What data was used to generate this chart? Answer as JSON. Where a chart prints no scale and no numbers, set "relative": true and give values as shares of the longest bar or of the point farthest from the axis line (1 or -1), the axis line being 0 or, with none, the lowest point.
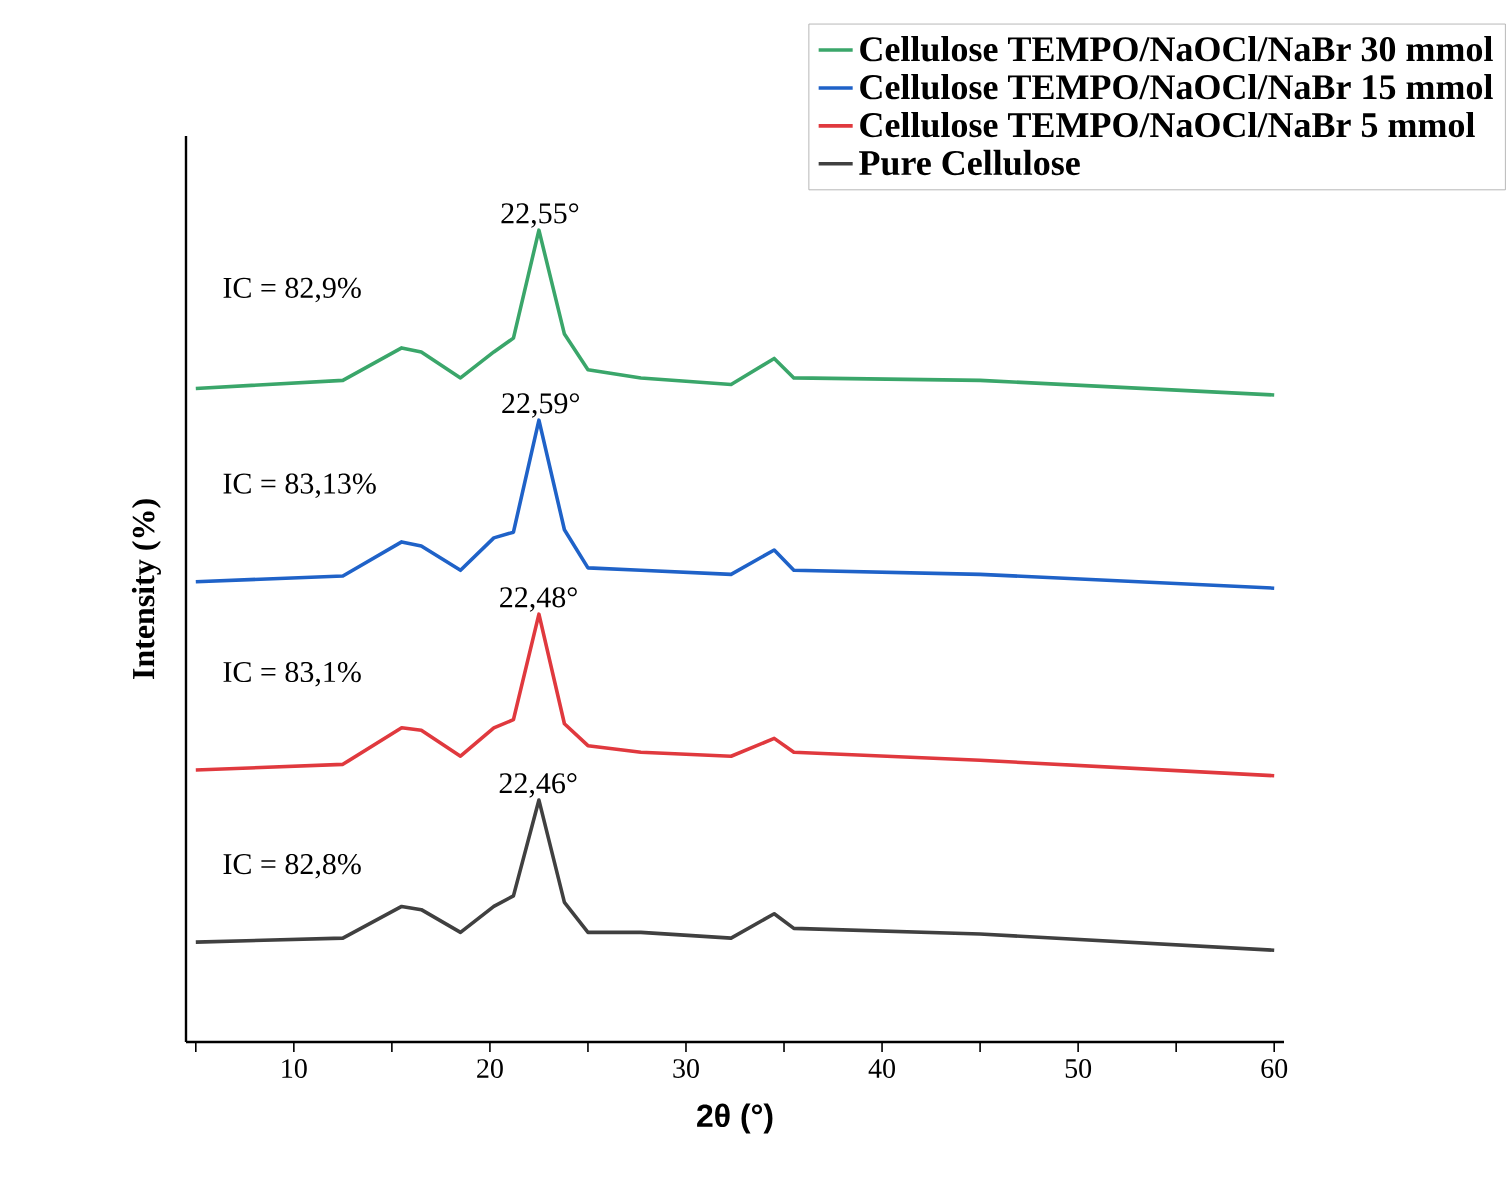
{
  "chart_data": {
    "type": "line",
    "relative": true,
    "xlabel": "2θ (°)",
    "ylabel": "Intensity (%)",
    "xlim": [
      4.5,
      60.5
    ],
    "xticks": [
      {
        "value": 5,
        "label": null
      },
      10,
      {
        "value": 15,
        "label": null
      },
      20,
      {
        "value": 25,
        "label": null
      },
      30,
      {
        "value": 35,
        "label": null
      },
      40,
      {
        "value": 45,
        "label": null
      },
      50,
      {
        "value": 55,
        "label": null
      },
      60
    ],
    "tick_labels": "x",
    "legend": "top right",
    "line_style": "solid",
    "x": [
      5,
      12.5,
      15.5,
      16.5,
      18.5,
      20.2,
      21.2,
      22.5,
      23.8,
      25,
      27.7,
      32.3,
      34.5,
      35.5,
      45,
      60
    ],
    "series": [
      {
        "name": "Cellulose TEMPO/NaOCl/NaBr 30 mmol",
        "color": "#3aa66a",
        "values": [
          0.805,
          0.815,
          0.855,
          0.85,
          0.818,
          0.85,
          0.867,
          1.0,
          0.872,
          0.828,
          0.818,
          0.81,
          0.842,
          0.818,
          0.815,
          0.797
        ]
      },
      {
        "name": "Cellulose TEMPO/NaOCl/NaBr 15 mmol",
        "color": "#1f62c8",
        "values": [
          0.567,
          0.574,
          0.616,
          0.611,
          0.581,
          0.621,
          0.628,
          0.766,
          0.631,
          0.584,
          0.581,
          0.576,
          0.606,
          0.581,
          0.576,
          0.559
        ]
      },
      {
        "name": "Cellulose TEMPO/NaOCl/NaBr 5 mmol",
        "color": "#e0393e",
        "values": [
          0.335,
          0.342,
          0.387,
          0.384,
          0.352,
          0.387,
          0.397,
          0.527,
          0.392,
          0.365,
          0.357,
          0.352,
          0.374,
          0.357,
          0.347,
          0.328
        ]
      },
      {
        "name": "Pure Cellulose",
        "color": "#404040",
        "values": [
          0.123,
          0.128,
          0.167,
          0.163,
          0.135,
          0.167,
          0.18,
          0.298,
          0.172,
          0.135,
          0.135,
          0.128,
          0.158,
          0.14,
          0.133,
          0.113
        ]
      }
    ],
    "annotations": [
      {
        "text": "22,55°",
        "x": 22.55,
        "y": 1.0
      },
      {
        "text": "22,59°",
        "x": 22.59,
        "y": 0.766
      },
      {
        "text": "22,48°",
        "x": 22.48,
        "y": 0.527
      },
      {
        "text": "22,46°",
        "x": 22.46,
        "y": 0.298
      },
      "IC = 82,9%",
      "IC = 83,13%",
      "IC = 83,1%",
      "IC = 82,8%"
    ]
  }
}
